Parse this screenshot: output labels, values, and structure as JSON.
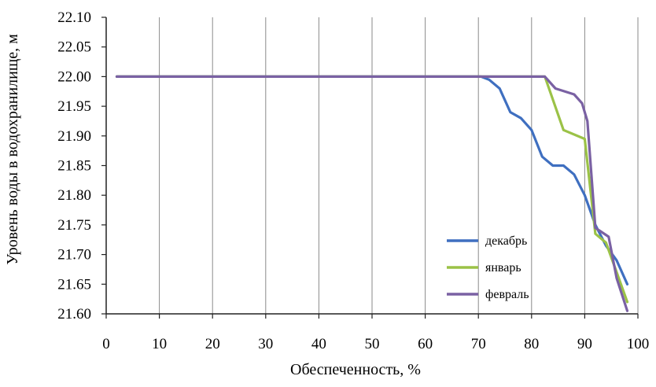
{
  "chart_data": {
    "type": "line",
    "title": "",
    "xlabel": "Обеспеченность, %",
    "ylabel": "Уровень воды в водохранилище, м",
    "xlim": [
      0,
      100
    ],
    "ylim": [
      21.6,
      22.1
    ],
    "x_ticks": [
      "0",
      "10",
      "20",
      "30",
      "40",
      "50",
      "60",
      "70",
      "80",
      "90",
      "100"
    ],
    "y_ticks": [
      "21.60",
      "21.65",
      "21.70",
      "21.75",
      "21.80",
      "21.85",
      "21.90",
      "21.95",
      "22.00",
      "22.05",
      "22.10"
    ],
    "grid": "vertical",
    "legend_position": "bottom-right",
    "series": [
      {
        "name": "декабрь",
        "color": "#3f6fc0",
        "points": [
          [
            2,
            22.0
          ],
          [
            70.5,
            22.0
          ],
          [
            72,
            21.995
          ],
          [
            74,
            21.98
          ],
          [
            76,
            21.94
          ],
          [
            78,
            21.93
          ],
          [
            80,
            21.91
          ],
          [
            82,
            21.865
          ],
          [
            84,
            21.85
          ],
          [
            86,
            21.85
          ],
          [
            88,
            21.835
          ],
          [
            90,
            21.8
          ],
          [
            92,
            21.75
          ],
          [
            94,
            21.715
          ],
          [
            96,
            21.69
          ],
          [
            98,
            21.65
          ]
        ]
      },
      {
        "name": "январь",
        "color": "#9bc247",
        "points": [
          [
            2,
            22.0
          ],
          [
            82.5,
            22.0
          ],
          [
            86,
            21.91
          ],
          [
            90,
            21.895
          ],
          [
            92,
            21.735
          ],
          [
            94,
            21.72
          ],
          [
            96,
            21.67
          ],
          [
            98,
            21.62
          ]
        ]
      },
      {
        "name": "февраль",
        "color": "#7a61a3",
        "points": [
          [
            2,
            22.0
          ],
          [
            82.5,
            22.0
          ],
          [
            84.5,
            21.98
          ],
          [
            88,
            21.97
          ],
          [
            89.5,
            21.955
          ],
          [
            90.5,
            21.925
          ],
          [
            92,
            21.745
          ],
          [
            94.5,
            21.73
          ],
          [
            96,
            21.66
          ],
          [
            98,
            21.605
          ]
        ]
      }
    ]
  }
}
